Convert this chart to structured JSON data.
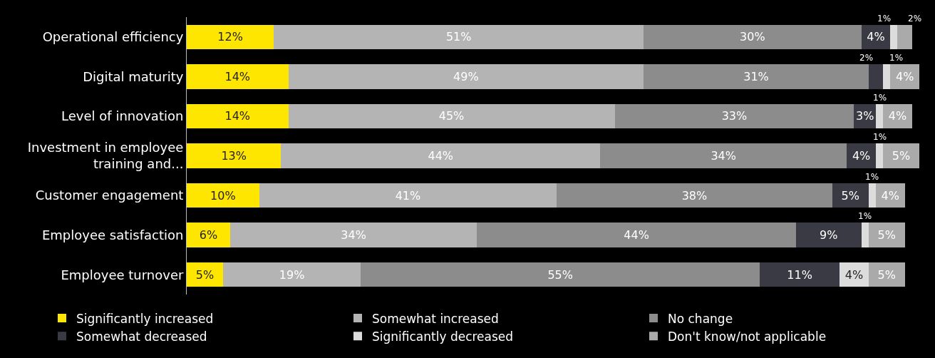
{
  "chart_data": {
    "type": "bar",
    "orientation": "horizontal",
    "stacked": true,
    "legend": "bottom",
    "categories": [
      "Operational efficiency",
      "Digital maturity",
      "Level of innovation",
      "Investment in employee training and...",
      "Customer engagement",
      "Employee satisfaction",
      "Employee turnover"
    ],
    "series": [
      {
        "name": "Significantly increased",
        "color": "#ffe600",
        "values": [
          12,
          14,
          14,
          13,
          10,
          6,
          5
        ],
        "value_labels": [
          "12%",
          "14%",
          "14%",
          "13%",
          "10%",
          "6%",
          "5%"
        ]
      },
      {
        "name": "Somewhat increased",
        "color": "#b4b4b4",
        "values": [
          51,
          49,
          45,
          44,
          41,
          34,
          19
        ],
        "value_labels": [
          "51%",
          "49%",
          "45%",
          "44%",
          "41%",
          "34%",
          "19%"
        ]
      },
      {
        "name": "No change",
        "color": "#8c8c8c",
        "values": [
          30,
          31,
          33,
          34,
          38,
          44,
          55
        ],
        "value_labels": [
          "30%",
          "31%",
          "33%",
          "34%",
          "38%",
          "44%",
          "55%"
        ]
      },
      {
        "name": "Somewhat decreased",
        "color": "#3a3a44",
        "values": [
          4,
          2,
          3,
          4,
          5,
          9,
          11
        ],
        "value_labels": [
          "4%",
          "2%",
          "3%",
          "4%",
          "5%",
          "9%",
          "11%"
        ]
      },
      {
        "name": "Significantly decreased",
        "color": "#dcdcdc",
        "values": [
          1,
          1,
          1,
          1,
          1,
          1,
          4
        ],
        "value_labels": [
          "1%",
          "1%",
          "1%",
          "1%",
          "1%",
          "1%",
          "4%"
        ]
      },
      {
        "name": "Don't know/not applicable",
        "color": "#aaaaaa",
        "values": [
          2,
          4,
          4,
          5,
          4,
          5,
          5
        ],
        "value_labels": [
          "2%",
          "4%",
          "4%",
          "5%",
          "4%",
          "5%",
          "5%"
        ]
      }
    ]
  }
}
